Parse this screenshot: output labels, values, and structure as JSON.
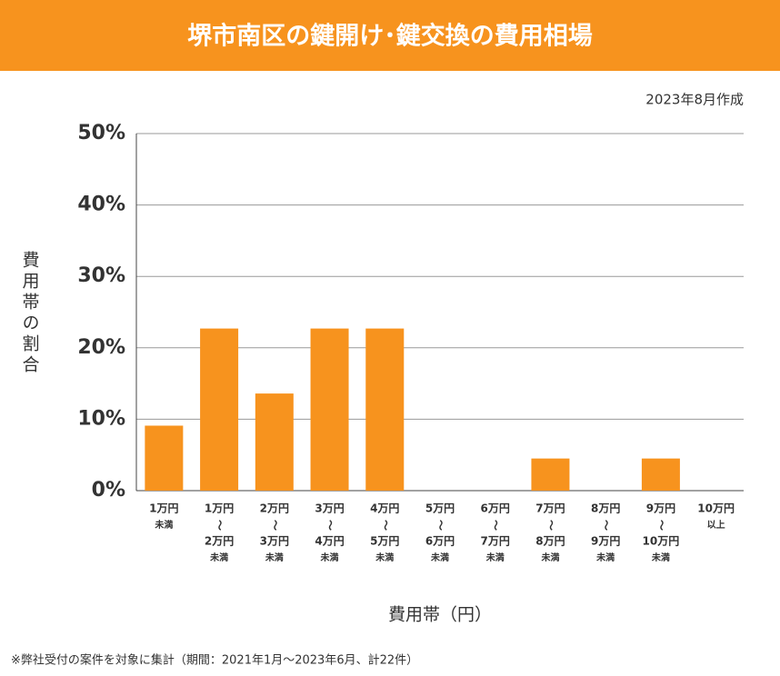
{
  "chart_data": {
    "type": "bar",
    "title": "堺市南区の鍵開け･鍵交換の費用相場",
    "subtitle": "2023年8月作成",
    "y_label": "費用帯の割合",
    "x_label": "費用帯（円）",
    "footnote": "※弊社受付の案件を対象に集計（期間：2021年1月～2023年6月、計22件）",
    "categories": [
      [
        "1万円",
        "未満"
      ],
      [
        "1万円",
        "〜",
        "2万円",
        "未満"
      ],
      [
        "2万円",
        "〜",
        "3万円",
        "未満"
      ],
      [
        "3万円",
        "〜",
        "4万円",
        "未満"
      ],
      [
        "4万円",
        "〜",
        "5万円",
        "未満"
      ],
      [
        "5万円",
        "〜",
        "6万円",
        "未満"
      ],
      [
        "6万円",
        "〜",
        "7万円",
        "未満"
      ],
      [
        "7万円",
        "〜",
        "8万円",
        "未満"
      ],
      [
        "8万円",
        "〜",
        "9万円",
        "未満"
      ],
      [
        "9万円",
        "〜",
        "10万円",
        "未満"
      ],
      [
        "10万円",
        "以上"
      ]
    ],
    "values": [
      9.1,
      22.7,
      13.6,
      22.7,
      22.7,
      0,
      0,
      4.5,
      0,
      4.5,
      0
    ],
    "color": "#f7931e",
    "ylim": [
      0,
      50
    ],
    "yticks": [
      {
        "value": 0,
        "label": "0%"
      },
      {
        "value": 10,
        "label": "10%"
      },
      {
        "value": 20,
        "label": "20%"
      },
      {
        "value": 30,
        "label": "30%"
      },
      {
        "value": 40,
        "label": "40%"
      },
      {
        "value": 50,
        "label": "50%"
      }
    ],
    "grid": true
  }
}
